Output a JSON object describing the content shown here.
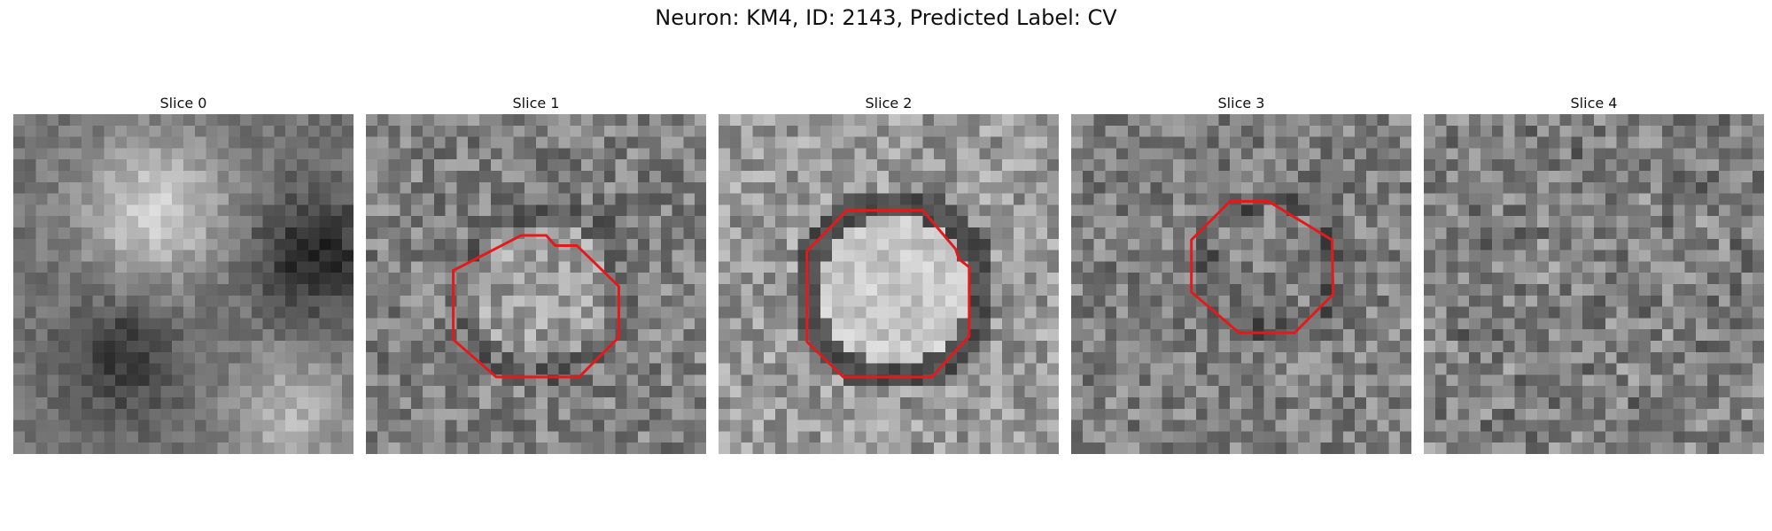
{
  "figure": {
    "title": "Neuron: KM4, ID: 2143, Predicted Label: CV"
  },
  "slices": [
    {
      "label": "Slice 0",
      "has_contour": false
    },
    {
      "label": "Slice 1",
      "has_contour": true
    },
    {
      "label": "Slice 2",
      "has_contour": true
    },
    {
      "label": "Slice 3",
      "has_contour": true
    },
    {
      "label": "Slice 4",
      "has_contour": false
    }
  ],
  "contour_color": "#e31a1c"
}
